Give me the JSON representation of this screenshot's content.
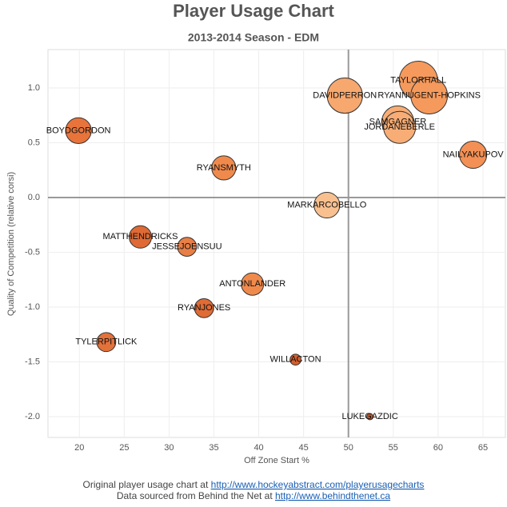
{
  "chart_data": {
    "type": "scatter",
    "title": "Player Usage Chart",
    "subtitle": "2013-2014 Season - EDM",
    "xlabel": "Off Zone Start %",
    "ylabel": "Quality of Competition (relative corsi)",
    "labels": [
      "TAYLORHALL",
      "RYANNUGENT-HOPKINS",
      "DAVIDPERRON",
      "SAMGAGNER",
      "JORDANEBERLE",
      "NAILYAKUPOV",
      "BOYDGORDON",
      "RYANSMYTH",
      "MARKARCOBELLO",
      "MATTHENDRICKS",
      "JESSEJOENSUU",
      "ANTONLANDER",
      "RYANJONES",
      "TYLERPITLICK",
      "WILLACTON",
      "LUKEGAZDIC"
    ],
    "x": [
      57.8,
      59.0,
      49.6,
      55.5,
      55.7,
      63.9,
      19.9,
      36.1,
      47.6,
      26.8,
      32.0,
      39.3,
      33.9,
      23.0,
      44.1,
      52.4
    ],
    "values": [
      1.07,
      0.93,
      0.93,
      0.69,
      0.64,
      0.39,
      0.61,
      0.27,
      -0.07,
      -0.36,
      -0.45,
      -0.79,
      -1.01,
      -1.32,
      -1.48,
      -2.0
    ],
    "sizes": [
      73,
      67,
      62,
      51,
      51,
      37,
      33,
      29,
      33,
      25,
      18,
      25,
      18,
      18,
      6,
      2
    ],
    "colors": [
      "#f59a5c",
      "#f59a5c",
      "#f7a86f",
      "#f7ad75",
      "#f7ad75",
      "#f39055",
      "#e8743b",
      "#f08a4c",
      "#f9c08f",
      "#df6a35",
      "#e87f46",
      "#f08a4c",
      "#e06b35",
      "#e3713a",
      "#d65f2c",
      "#c85428"
    ],
    "xlim": [
      16.5,
      67.5
    ],
    "ylim": [
      -2.19,
      1.35
    ],
    "xticks": [
      20,
      25,
      30,
      35,
      40,
      45,
      50,
      55,
      60,
      65
    ],
    "yticks": [
      {
        "value": 1.0,
        "label": "1.0"
      },
      {
        "value": 0.5,
        "label": "0.5"
      },
      {
        "value": 0.0,
        "label": "0.0"
      },
      {
        "value": -0.5,
        "label": "-0.5"
      },
      {
        "value": -1.0,
        "label": "-1.0"
      },
      {
        "value": -1.5,
        "label": "-1.5"
      },
      {
        "value": -2.0,
        "label": "-2.0"
      }
    ],
    "reference_lines": {
      "x": 50,
      "y": 0
    },
    "grid": true
  },
  "footer": [
    {
      "text": "Original player usage chart at ",
      "link": "http://www.hockeyabstract.com/playerusagecharts"
    },
    {
      "text": "Data sourced from Behind the Net at ",
      "link": "http://www.behindthenet.ca"
    }
  ]
}
